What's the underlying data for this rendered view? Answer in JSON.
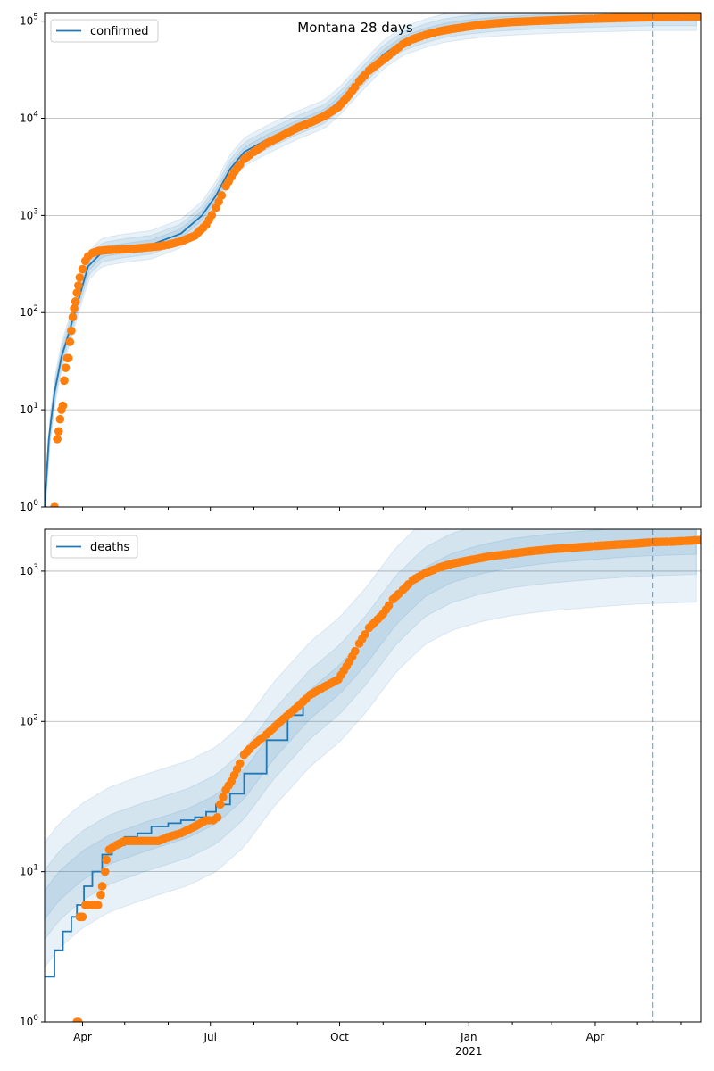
{
  "title": "Montana 28 days",
  "colors": {
    "model": "#1f77b4",
    "observed": "#ff7f0e",
    "band": "#1f77b4",
    "vline": "#1f77b4",
    "grid": "#b0b0b0"
  },
  "x_axis": {
    "start": "2020-03-05",
    "end": "2021-06-15",
    "major_ticks": [
      {
        "date": "2020-04-01",
        "label": "Apr"
      },
      {
        "date": "2020-07-01",
        "label": "Jul"
      },
      {
        "date": "2020-10-01",
        "label": "Oct"
      },
      {
        "date": "2021-01-01",
        "label": "Jan"
      },
      {
        "date": "2021-04-01",
        "label": "Apr"
      }
    ],
    "year_label": {
      "date": "2021-01-01",
      "label": "2021"
    },
    "minor_tick_dates": [
      "2020-05-01",
      "2020-06-01",
      "2020-08-01",
      "2020-09-01",
      "2020-11-01",
      "2020-12-01",
      "2021-02-01",
      "2021-03-01",
      "2021-05-01",
      "2021-06-01"
    ]
  },
  "vline_date": "2021-05-12",
  "chart_data": [
    {
      "type": "line",
      "panel": "confirmed",
      "yscale": "log",
      "ylim": [
        1,
        120000
      ],
      "yticks": [
        {
          "value": 1,
          "base": "10",
          "exp": "0"
        },
        {
          "value": 10,
          "base": "10",
          "exp": "1"
        },
        {
          "value": 100,
          "base": "10",
          "exp": "2"
        },
        {
          "value": 1000,
          "base": "10",
          "exp": "3"
        },
        {
          "value": 10000,
          "base": "10",
          "exp": "4"
        },
        {
          "value": 100000,
          "base": "10",
          "exp": "5"
        }
      ],
      "grid": "y",
      "legend": {
        "label": "confirmed",
        "placement": "top-left"
      },
      "model": {
        "name": "confirmed",
        "x": [
          "2020-03-05",
          "2020-03-08",
          "2020-03-12",
          "2020-03-17",
          "2020-03-22",
          "2020-03-28",
          "2020-04-05",
          "2020-04-15",
          "2020-05-01",
          "2020-05-20",
          "2020-06-10",
          "2020-06-25",
          "2020-07-05",
          "2020-07-15",
          "2020-07-25",
          "2020-08-10",
          "2020-09-01",
          "2020-09-20",
          "2020-10-01",
          "2020-10-15",
          "2020-11-01",
          "2020-11-15",
          "2020-12-01",
          "2020-12-15",
          "2021-01-01",
          "2021-01-20",
          "2021-02-10",
          "2021-03-01",
          "2021-03-20",
          "2021-04-10",
          "2021-05-01",
          "2021-05-12"
        ],
        "y": [
          1,
          5,
          15,
          35,
          60,
          120,
          300,
          420,
          460,
          500,
          650,
          1000,
          1600,
          3000,
          4500,
          6000,
          8500,
          11000,
          15000,
          25000,
          45000,
          62000,
          75000,
          85000,
          92000,
          98000,
          102000,
          105000,
          107000,
          109000,
          111000,
          112000
        ]
      },
      "band_ratios": [
        1.12,
        1.25,
        1.4
      ],
      "observed": {
        "x": [
          "2020-03-12",
          "2020-03-14",
          "2020-03-15",
          "2020-03-16",
          "2020-03-17",
          "2020-03-18",
          "2020-03-19",
          "2020-03-20",
          "2020-03-21",
          "2020-03-22",
          "2020-03-23",
          "2020-03-24",
          "2020-03-25",
          "2020-03-26",
          "2020-03-27",
          "2020-03-28",
          "2020-03-29",
          "2020-03-30",
          "2020-04-01",
          "2020-04-03",
          "2020-04-05",
          "2020-04-08",
          "2020-04-12",
          "2020-04-18",
          "2020-04-25",
          "2020-05-05",
          "2020-05-15",
          "2020-05-25",
          "2020-06-01",
          "2020-06-10",
          "2020-06-20",
          "2020-06-28",
          "2020-07-05",
          "2020-07-12",
          "2020-07-18",
          "2020-07-25",
          "2020-08-01",
          "2020-08-10",
          "2020-08-20",
          "2020-09-01",
          "2020-09-10",
          "2020-09-20",
          "2020-09-30",
          "2020-10-08",
          "2020-10-15",
          "2020-10-22",
          "2020-11-01",
          "2020-11-08",
          "2020-11-15",
          "2020-11-22",
          "2020-12-01",
          "2020-12-10",
          "2020-12-20",
          "2021-01-01",
          "2021-01-10",
          "2021-01-20",
          "2021-02-01",
          "2021-02-15",
          "2021-03-01",
          "2021-03-15",
          "2021-04-01",
          "2021-04-15",
          "2021-05-01",
          "2021-05-12",
          "2021-05-25",
          "2021-06-05",
          "2021-06-15"
        ],
        "y": [
          1,
          5,
          6,
          8,
          10,
          11,
          20,
          27,
          34,
          34,
          50,
          65,
          90,
          110,
          130,
          160,
          190,
          230,
          280,
          340,
          380,
          410,
          430,
          440,
          445,
          450,
          465,
          480,
          500,
          540,
          620,
          800,
          1200,
          2000,
          2800,
          3800,
          4500,
          5500,
          6500,
          8000,
          9000,
          10500,
          13000,
          17500,
          24000,
          31000,
          40000,
          48000,
          58000,
          65000,
          72000,
          78000,
          83000,
          88000,
          92000,
          95000,
          98000,
          100000,
          102000,
          104000,
          106000,
          107500,
          109000,
          110000,
          110500,
          111000,
          111500
        ]
      }
    },
    {
      "type": "line",
      "panel": "deaths",
      "yscale": "log",
      "ylim": [
        1,
        1900
      ],
      "yticks": [
        {
          "value": 1,
          "base": "10",
          "exp": "0"
        },
        {
          "value": 10,
          "base": "10",
          "exp": "1"
        },
        {
          "value": 100,
          "base": "10",
          "exp": "2"
        },
        {
          "value": 1000,
          "base": "10",
          "exp": "3"
        }
      ],
      "grid": "y",
      "legend": {
        "label": "deaths",
        "placement": "top-left"
      },
      "model": {
        "name": "deaths",
        "step": true,
        "x": [
          "2020-03-05",
          "2020-03-12",
          "2020-03-18",
          "2020-03-24",
          "2020-03-28",
          "2020-04-02",
          "2020-04-08",
          "2020-04-15",
          "2020-04-22",
          "2020-05-01",
          "2020-05-10",
          "2020-05-20",
          "2020-06-01",
          "2020-06-10",
          "2020-06-20",
          "2020-06-28",
          "2020-07-05",
          "2020-07-15",
          "2020-07-25",
          "2020-08-10",
          "2020-08-25",
          "2020-09-05"
        ],
        "y": [
          2,
          3,
          4,
          5,
          6,
          8,
          10,
          13,
          15,
          17,
          18,
          20,
          21,
          22,
          23,
          25,
          28,
          33,
          45,
          75,
          110,
          135
        ]
      },
      "band_ratios": [
        1.25,
        1.7,
        2.6
      ],
      "band_curve": {
        "x": [
          "2020-03-05",
          "2020-03-15",
          "2020-04-01",
          "2020-04-20",
          "2020-05-15",
          "2020-06-15",
          "2020-07-05",
          "2020-07-25",
          "2020-08-15",
          "2020-09-10",
          "2020-10-01",
          "2020-10-20",
          "2020-11-10",
          "2020-12-01",
          "2020-12-20",
          "2021-01-10",
          "2021-02-01",
          "2021-03-01",
          "2021-04-01",
          "2021-05-01",
          "2021-06-15"
        ],
        "y": [
          6,
          8,
          11,
          14,
          17,
          21,
          26,
          38,
          70,
          130,
          190,
          300,
          550,
          850,
          1050,
          1200,
          1320,
          1420,
          1500,
          1570,
          1620
        ]
      },
      "observed": {
        "x": [
          "2020-03-28",
          "2020-03-29",
          "2020-03-30",
          "2020-03-31",
          "2020-04-01",
          "2020-04-03",
          "2020-04-05",
          "2020-04-08",
          "2020-04-12",
          "2020-04-14",
          "2020-04-15",
          "2020-04-17",
          "2020-04-18",
          "2020-04-20",
          "2020-04-25",
          "2020-05-01",
          "2020-05-15",
          "2020-05-25",
          "2020-06-01",
          "2020-06-10",
          "2020-06-20",
          "2020-06-28",
          "2020-07-03",
          "2020-07-06",
          "2020-07-08",
          "2020-07-12",
          "2020-07-16",
          "2020-07-20",
          "2020-07-25",
          "2020-08-01",
          "2020-08-10",
          "2020-08-20",
          "2020-09-01",
          "2020-09-10",
          "2020-09-20",
          "2020-09-30",
          "2020-10-08",
          "2020-10-15",
          "2020-10-22",
          "2020-11-01",
          "2020-11-08",
          "2020-11-15",
          "2020-11-22",
          "2020-12-01",
          "2020-12-10",
          "2020-12-20",
          "2021-01-01",
          "2021-01-15",
          "2021-02-01",
          "2021-02-15",
          "2021-03-01",
          "2021-03-15",
          "2021-04-01",
          "2021-04-15",
          "2021-05-01",
          "2021-05-12",
          "2021-05-25",
          "2021-06-05",
          "2021-06-15"
        ],
        "y": [
          1,
          1,
          5,
          5,
          5,
          6,
          6,
          6,
          6,
          7,
          8,
          10,
          12,
          14,
          15,
          16,
          16,
          16,
          17,
          18,
          20,
          22,
          22,
          23,
          28,
          35,
          40,
          48,
          60,
          70,
          82,
          100,
          125,
          150,
          170,
          190,
          250,
          330,
          420,
          520,
          650,
          750,
          870,
          970,
          1050,
          1120,
          1180,
          1250,
          1310,
          1360,
          1400,
          1430,
          1470,
          1500,
          1530,
          1560,
          1570,
          1590,
          1610
        ]
      }
    }
  ]
}
